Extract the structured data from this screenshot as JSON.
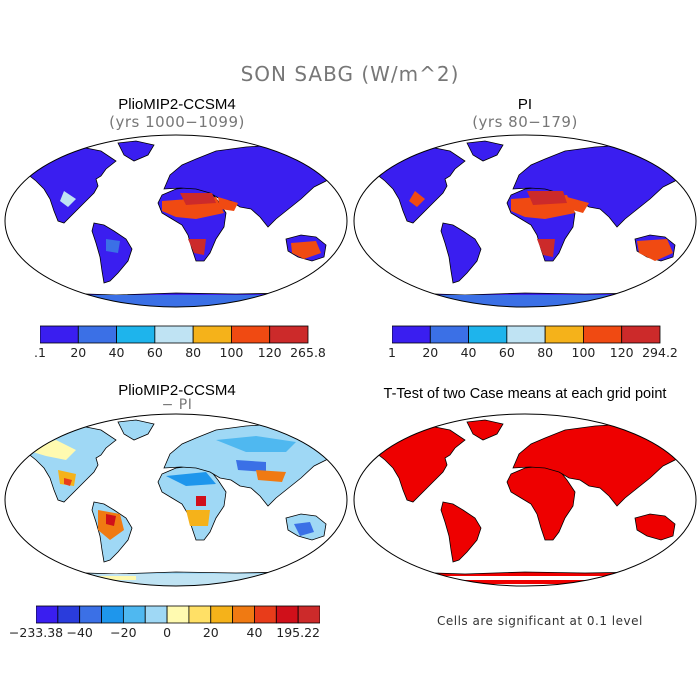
{
  "title": "SON SABG (W/m^2)",
  "panels": [
    {
      "title": "PlioMIP2-CCSM4",
      "subtitle": "(yrs 1000−1099)"
    },
    {
      "title": "PI",
      "subtitle": "(yrs 80−179)"
    },
    {
      "title": "PlioMIP2-CCSM4",
      "subtitle": "− PI"
    },
    {
      "title": "T-Test of two Case means at each grid point",
      "subtitle": ""
    }
  ],
  "colorbar_abs_1": {
    "labels": [
      ".1",
      "20",
      "40",
      "60",
      "80",
      "100",
      "120",
      "265.8"
    ],
    "colors": [
      "#3a1ef0",
      "#3b70e6",
      "#1eb4ec",
      "#bfe3f3",
      "#f5b21a",
      "#f04a12",
      "#cc2a2a"
    ]
  },
  "colorbar_abs_2": {
    "labels": [
      "1",
      "20",
      "40",
      "60",
      "80",
      "100",
      "120",
      "294.2"
    ],
    "colors": [
      "#3a1ef0",
      "#3b70e6",
      "#1eb4ec",
      "#bfe3f3",
      "#f5b21a",
      "#f04a12",
      "#cc2a2a"
    ]
  },
  "colorbar_diff": {
    "labels": [
      "−233.38",
      "−40",
      "−20",
      "0",
      "20",
      "40",
      "195.22"
    ],
    "colors": [
      "#3a1ef0",
      "#2a3cdc",
      "#3b70e6",
      "#1e96ec",
      "#4fb8f0",
      "#9fd8f5",
      "#fffab0",
      "#ffe066",
      "#f5b21a",
      "#f07a12",
      "#e83c1a",
      "#d0101a",
      "#cc2a2a"
    ]
  },
  "significance_note": "Cells are significant at 0.1 level",
  "significance_color": "#ee0000"
}
